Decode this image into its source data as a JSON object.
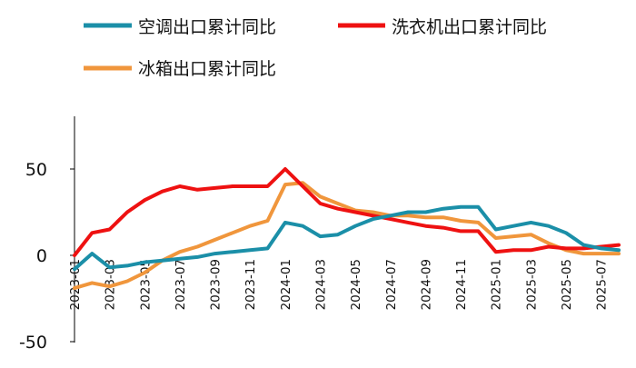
{
  "chart_data": {
    "type": "line",
    "title": "",
    "xlabel": "",
    "ylabel": "",
    "ylim": [
      -50,
      80
    ],
    "yticks": [
      -50,
      0,
      50
    ],
    "grid": false,
    "legend_position": "top",
    "x": [
      "2023-01",
      "2023-02",
      "2023-03",
      "2023-04",
      "2023-05",
      "2023-06",
      "2023-07",
      "2023-08",
      "2023-09",
      "2023-10",
      "2023-11",
      "2023-12",
      "2024-01",
      "2024-02",
      "2024-03",
      "2024-04",
      "2024-05",
      "2024-06",
      "2024-07",
      "2024-08",
      "2024-09",
      "2024-10",
      "2024-11",
      "2024-12",
      "2025-01",
      "2025-02",
      "2025-03",
      "2025-04",
      "2025-05",
      "2025-06",
      "2025-07",
      "2025-08"
    ],
    "xtick_labels": [
      "2023-01",
      "2023-03",
      "2023-05",
      "2023-07",
      "2023-09",
      "2023-11",
      "2024-01",
      "2024-03",
      "2024-05",
      "2024-07",
      "2024-09",
      "2024-11",
      "2025-01",
      "2025-03",
      "2025-05",
      "2025-07"
    ],
    "series": [
      {
        "name": "空调出口累计同比",
        "color": "#1b8fa8",
        "values": [
          -8,
          1,
          -7,
          -6,
          -4,
          -3,
          -2,
          -1,
          1,
          2,
          3,
          4,
          19,
          17,
          11,
          12,
          17,
          21,
          23,
          25,
          25,
          27,
          28,
          28,
          15,
          17,
          19,
          17,
          13,
          6,
          4,
          3
        ]
      },
      {
        "name": "洗衣机出口累计同比",
        "color": "#ee1111",
        "values": [
          0,
          13,
          15,
          25,
          32,
          37,
          40,
          38,
          39,
          40,
          40,
          40,
          50,
          40,
          30,
          27,
          25,
          23,
          21,
          19,
          17,
          16,
          14,
          14,
          2,
          3,
          3,
          5,
          4,
          4,
          5,
          6
        ]
      },
      {
        "name": "冰箱出口累计同比",
        "color": "#f0963c",
        "values": [
          -19,
          -16,
          -18,
          -15,
          -10,
          -3,
          2,
          5,
          9,
          13,
          17,
          20,
          41,
          42,
          34,
          30,
          26,
          25,
          23,
          23,
          22,
          22,
          20,
          19,
          10,
          11,
          12,
          7,
          3,
          1,
          1,
          1
        ]
      }
    ]
  }
}
